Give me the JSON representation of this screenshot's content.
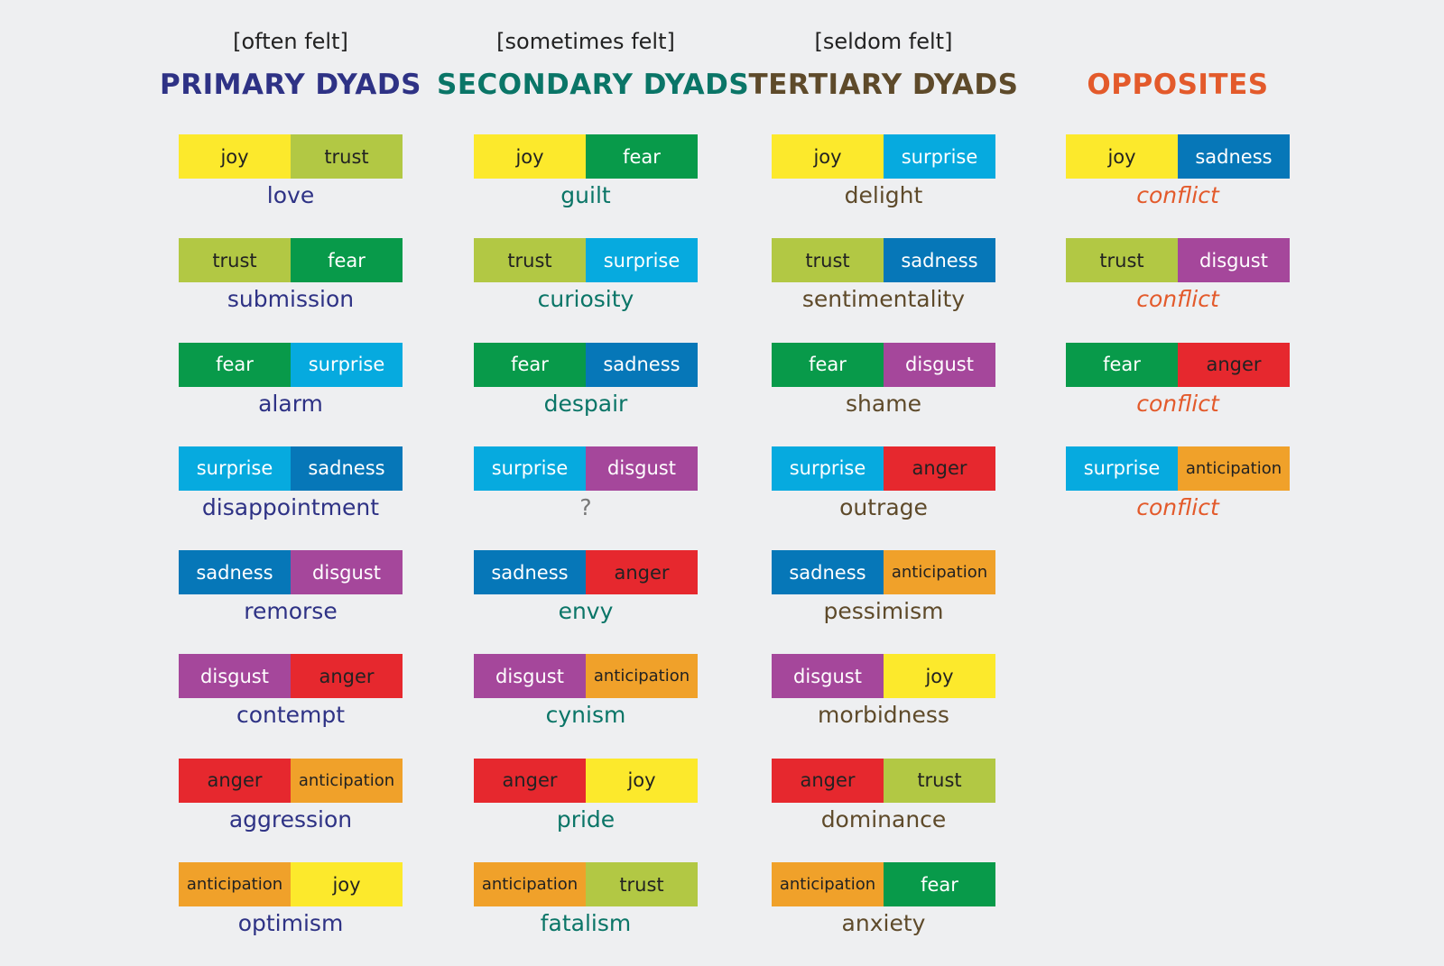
{
  "colors": {
    "joy": "#fce92c",
    "trust": "#b2c844",
    "fear": "#089a4a",
    "surprise": "#06aadf",
    "sadness": "#0677b8",
    "disgust": "#a5479b",
    "anger": "#e6282e",
    "anticipation": "#f0a12a"
  },
  "text_colors": {
    "joy": "#222222",
    "trust": "#222222",
    "anticipation": "#222222",
    "fear": "#ffffff",
    "surprise": "#ffffff",
    "sadness": "#ffffff",
    "disgust": "#ffffff",
    "anger": "#222222"
  },
  "columns": [
    {
      "frequency": "[often felt]",
      "title": "PRIMARY DYADS",
      "color": "#2e3285",
      "result_color": "#2e3285",
      "items": [
        {
          "a": "joy",
          "b": "trust",
          "result": "love"
        },
        {
          "a": "trust",
          "b": "fear",
          "result": "submission"
        },
        {
          "a": "fear",
          "b": "surprise",
          "result": "alarm"
        },
        {
          "a": "surprise",
          "b": "sadness",
          "result": "disappointment"
        },
        {
          "a": "sadness",
          "b": "disgust",
          "result": "remorse"
        },
        {
          "a": "disgust",
          "b": "anger",
          "result": "contempt"
        },
        {
          "a": "anger",
          "b": "anticipation",
          "result": "aggression"
        },
        {
          "a": "anticipation",
          "b": "joy",
          "result": "optimism"
        }
      ]
    },
    {
      "frequency": "[sometimes felt]",
      "title": "SECONDARY DYADS",
      "color": "#0a7567",
      "result_color": "#0a7567",
      "items": [
        {
          "a": "joy",
          "b": "fear",
          "result": "guilt"
        },
        {
          "a": "trust",
          "b": "surprise",
          "result": "curiosity"
        },
        {
          "a": "fear",
          "b": "sadness",
          "result": "despair"
        },
        {
          "a": "surprise",
          "b": "disgust",
          "result": "?"
        },
        {
          "a": "sadness",
          "b": "anger",
          "result": "envy"
        },
        {
          "a": "disgust",
          "b": "anticipation",
          "result": "cynism"
        },
        {
          "a": "anger",
          "b": "joy",
          "result": "pride"
        },
        {
          "a": "anticipation",
          "b": "trust",
          "result": "fatalism"
        }
      ]
    },
    {
      "frequency": "[seldom felt]",
      "title": "TERTIARY DYADS",
      "color": "#5e4a2a",
      "result_color": "#5e4a2a",
      "items": [
        {
          "a": "joy",
          "b": "surprise",
          "result": "delight"
        },
        {
          "a": "trust",
          "b": "sadness",
          "result": "sentimentality"
        },
        {
          "a": "fear",
          "b": "disgust",
          "result": "shame"
        },
        {
          "a": "surprise",
          "b": "anger",
          "result": "outrage"
        },
        {
          "a": "sadness",
          "b": "anticipation",
          "result": "pessimism"
        },
        {
          "a": "disgust",
          "b": "joy",
          "result": "morbidness"
        },
        {
          "a": "anger",
          "b": "trust",
          "result": "dominance"
        },
        {
          "a": "anticipation",
          "b": "fear",
          "result": "anxiety"
        }
      ]
    },
    {
      "frequency": "",
      "title": "OPPOSITES",
      "color": "#e35a2b",
      "result_color": "#e35a2b",
      "italic": true,
      "items": [
        {
          "a": "joy",
          "b": "sadness",
          "result": "conflict"
        },
        {
          "a": "trust",
          "b": "disgust",
          "result": "conflict"
        },
        {
          "a": "fear",
          "b": "anger",
          "result": "conflict"
        },
        {
          "a": "surprise",
          "b": "anticipation",
          "result": "conflict"
        }
      ]
    }
  ]
}
